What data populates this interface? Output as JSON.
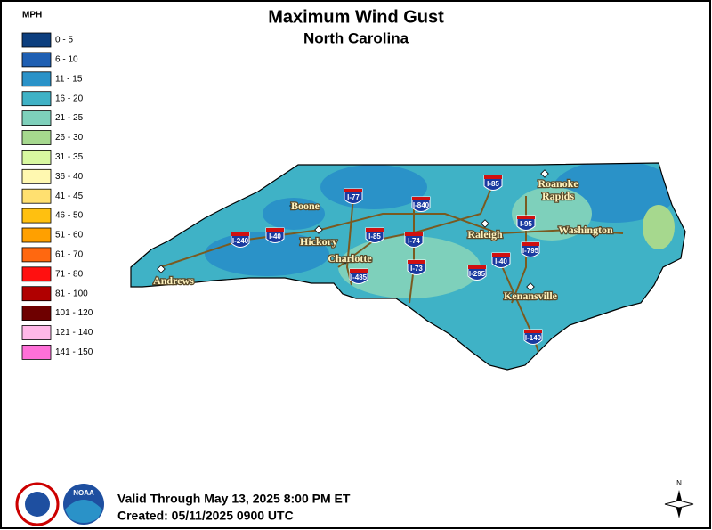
{
  "header": {
    "title": "Maximum Wind Gust",
    "subtitle": "North Carolina"
  },
  "legend": {
    "unit": "MPH",
    "items": [
      {
        "label": "0 - 5",
        "color": "#0c3e7e"
      },
      {
        "label": "6 - 10",
        "color": "#1e5fb3"
      },
      {
        "label": "11 - 15",
        "color": "#2a92c8"
      },
      {
        "label": "16 - 20",
        "color": "#3fb2c6"
      },
      {
        "label": "21 - 25",
        "color": "#7ed0bb"
      },
      {
        "label": "26 - 30",
        "color": "#a6d88e"
      },
      {
        "label": "31 - 35",
        "color": "#d8f8a0"
      },
      {
        "label": "36 - 40",
        "color": "#fff8b0"
      },
      {
        "label": "41 - 45",
        "color": "#ffe070"
      },
      {
        "label": "46 - 50",
        "color": "#ffc010"
      },
      {
        "label": "51 - 60",
        "color": "#ffa000"
      },
      {
        "label": "61 - 70",
        "color": "#ff6810"
      },
      {
        "label": "71 - 80",
        "color": "#ff1010"
      },
      {
        "label": "81 - 100",
        "color": "#b00000"
      },
      {
        "label": "101 - 120",
        "color": "#6e0000"
      },
      {
        "label": "121 - 140",
        "color": "#ffb8e8"
      },
      {
        "label": "141 - 150",
        "color": "#ff70d8"
      }
    ]
  },
  "cities": [
    [
      "Boone"
    ],
    [
      "Hickory"
    ],
    [
      "Charlotte"
    ],
    [
      "Andrews"
    ],
    [
      "Raleigh"
    ],
    [
      "Roanoke",
      "Rapids"
    ],
    [
      "Washington"
    ],
    [
      "Kenansville"
    ]
  ],
  "interstates": [
    "I-240",
    "I-40",
    "I-77",
    "I-85",
    "I-840",
    "I-74",
    "I-73",
    "I-485",
    "I-295",
    "I-40",
    "I-85",
    "I-95",
    "I-795",
    "I-140"
  ],
  "footer": {
    "valid": "Valid Through May 13, 2025 8:00 PM ET",
    "created": "Created: 05/11/2025 0900 UTC"
  },
  "logos": {
    "noaa": "NOAA"
  },
  "compass": "N"
}
